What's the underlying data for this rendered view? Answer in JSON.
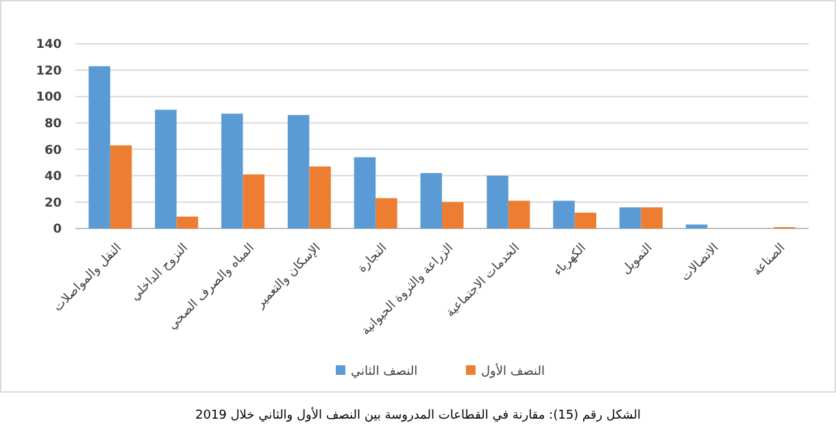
{
  "chart_data": {
    "type": "bar",
    "categories": [
      "النقل والمواصلات",
      "النزوح الداخلي",
      "المياه والصرف الصحي",
      "الإسكان والتعمير",
      "التجارة",
      "الزراعة والثروة الحيوانية",
      "الخدمات الاجتماعية",
      "الكهرباء",
      "التمويل",
      "الاتصالات",
      "الصناعة"
    ],
    "series": [
      {
        "name": "النصف الثاني",
        "color": "#5b9bd5",
        "values": [
          123,
          90,
          87,
          86,
          54,
          42,
          40,
          21,
          16,
          3,
          0
        ]
      },
      {
        "name": "النصف الأول",
        "color": "#ed7d31",
        "values": [
          63,
          9,
          41,
          47,
          23,
          20,
          21,
          12,
          16,
          0,
          1
        ]
      }
    ],
    "ylim": [
      0,
      140
    ],
    "yticks": [
      0,
      20,
      40,
      60,
      80,
      100,
      120,
      140
    ],
    "grid": "y",
    "legend": "bottom",
    "annotations": [
      "الشكل رقم (15): مقارنة في القطاعات المدروسة بين النصف الأول والثاني خلال 2019"
    ]
  }
}
